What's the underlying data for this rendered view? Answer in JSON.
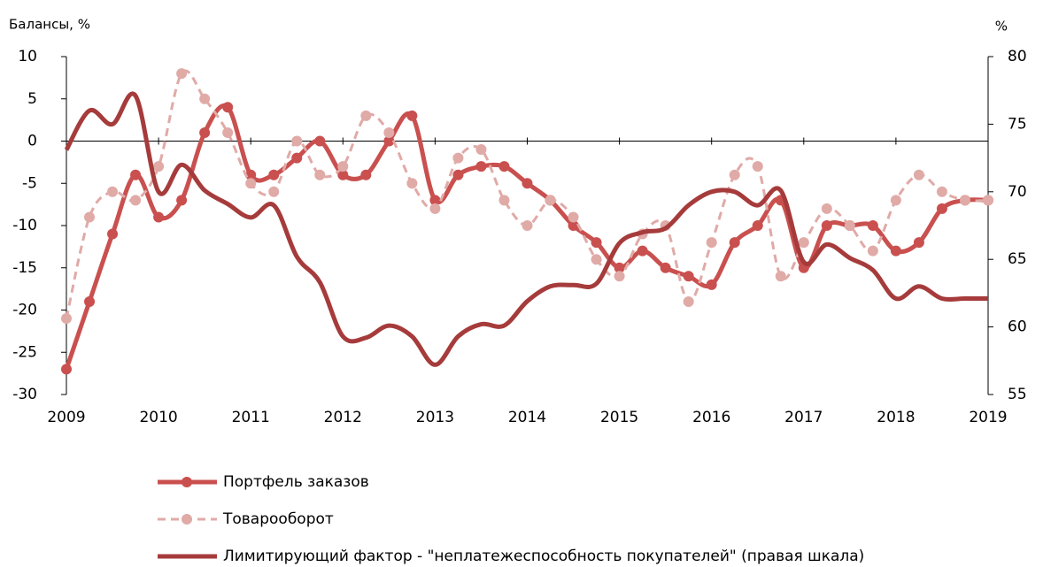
{
  "chart_data": {
    "type": "line",
    "ylabel": "Балансы, %",
    "y2label": "%",
    "xlim": [
      2009,
      2019
    ],
    "xticks": [
      2009,
      2010,
      2011,
      2012,
      2013,
      2014,
      2015,
      2016,
      2017,
      2018,
      2019
    ],
    "ylim": [
      -30,
      10
    ],
    "yticks": [
      -30,
      -25,
      -20,
      -15,
      -10,
      -5,
      0,
      5,
      10
    ],
    "y2lim": [
      55,
      80
    ],
    "y2ticks": [
      55,
      60,
      65,
      70,
      75,
      80
    ],
    "legend": "bottom",
    "x": [
      2009,
      2009.25,
      2009.5,
      2009.75,
      2010,
      2010.25,
      2010.5,
      2010.75,
      2011,
      2011.25,
      2011.5,
      2011.75,
      2012,
      2012.25,
      2012.5,
      2012.75,
      2013,
      2013.25,
      2013.5,
      2013.75,
      2014,
      2014.25,
      2014.5,
      2014.75,
      2015,
      2015.25,
      2015.5,
      2015.75,
      2016,
      2016.25,
      2016.5,
      2016.75,
      2017,
      2017.25,
      2017.5,
      2017.75,
      2018,
      2018.25,
      2018.5,
      2018.75,
      2019
    ],
    "series": [
      {
        "name": "Портфель заказов",
        "color": "#c9504f",
        "linestyle": "solid",
        "markers": true,
        "values": [
          -27,
          -19,
          -11,
          -4,
          -9,
          -7,
          1,
          4,
          -4,
          -4,
          -2,
          0,
          -4,
          -4,
          0,
          3,
          -7,
          -4,
          -3,
          -3,
          -5,
          -7,
          -10,
          -12,
          -15,
          -13,
          -15,
          -16,
          -17,
          -12,
          -10,
          -7,
          -15,
          -10,
          -10,
          -10,
          -13,
          -12,
          -8,
          -7,
          -7
        ]
      },
      {
        "name": "Товарооборот",
        "color": "#e0aaa7",
        "linestyle": "dashed",
        "markers": true,
        "values": [
          -21,
          -9,
          -6,
          -7,
          -3,
          8,
          5,
          1,
          -5,
          -6,
          0,
          -4,
          -3,
          3,
          1,
          -5,
          -8,
          -2,
          -1,
          -7,
          -10,
          -7,
          -9,
          -14,
          -16,
          -11,
          -10,
          -19,
          -12,
          -4,
          -3,
          -16,
          -12,
          -8,
          -10,
          -13,
          -7,
          -4,
          -6,
          -7,
          -7
        ]
      },
      {
        "name": "Лимитирующий  фактор - \"неплатежеспособность покупателей\" (правая шкала)",
        "color": "#a63b3b",
        "linestyle": "solid",
        "markers": false,
        "axis": "y2",
        "values": [
          73.1,
          76,
          75,
          77.1,
          70,
          72,
          70.1,
          69.1,
          68.1,
          69,
          65.2,
          63.3,
          59.3,
          59.2,
          60.1,
          59.3,
          57.2,
          59.3,
          60.2,
          60.1,
          61.9,
          63,
          63.1,
          63.2,
          66.2,
          67,
          67.3,
          69,
          70,
          70,
          69,
          70.1,
          64.8,
          66.1,
          65.1,
          64.2,
          62.1,
          63,
          62.1,
          62.1,
          62.1
        ]
      }
    ]
  }
}
